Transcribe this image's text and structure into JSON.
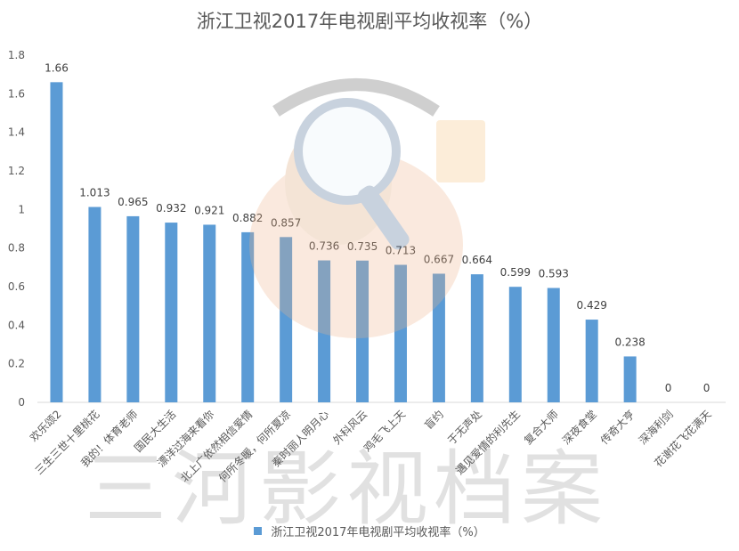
{
  "chart_data": {
    "type": "bar",
    "title": "浙江卫视2017年电视剧平均收视率（%）",
    "categories": [
      "欢乐颂2",
      "三生三世十里桃花",
      "我的！体育老师",
      "国民大生活",
      "漂洋过海来看你",
      "北上广依然相信爱情",
      "何所冬暖，何所夏凉",
      "秦时丽人明月心",
      "外科风云",
      "鸡毛飞上天",
      "盲约",
      "于无声处",
      "遇见爱情的利先生",
      "复合大师",
      "深夜食堂",
      "传奇大亨",
      "深海利剑",
      "花谢花飞花满天"
    ],
    "series": [
      {
        "name": "浙江卫视2017年电视剧平均收视率（%）",
        "values": [
          1.66,
          1.013,
          0.965,
          0.932,
          0.921,
          0.882,
          0.857,
          0.736,
          0.735,
          0.713,
          0.667,
          0.664,
          0.599,
          0.593,
          0.429,
          0.238,
          0,
          0
        ],
        "labels": [
          "1.66",
          "1.013",
          "0.965",
          "0.932",
          "0.921",
          "0.882",
          "0.857",
          "0.736",
          "0.735",
          "0.713",
          "0.667",
          "0.664",
          "0.599",
          "0.593",
          "0.429",
          "0.238",
          "0",
          "0"
        ],
        "color": "#5B9BD5"
      }
    ],
    "y_ticks": [
      "0",
      "0.2",
      "0.4",
      "0.6",
      "0.8",
      "1",
      "1.2",
      "1.4",
      "1.6",
      "1.8"
    ],
    "ylim": [
      0,
      1.8
    ],
    "grid": false,
    "legend_position": "bottom"
  },
  "watermark": "三河影视档案"
}
